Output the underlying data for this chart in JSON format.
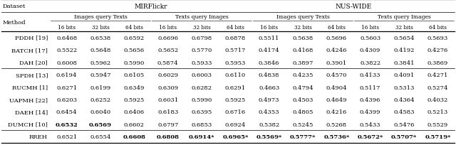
{
  "datasets": [
    "MIRFlickr",
    "NUS-WIDE"
  ],
  "sub_headers": [
    "Images query Texts",
    "Texts query Images",
    "Images query Texts",
    "Texts query Images"
  ],
  "bit_headers": [
    "16 bits",
    "32 bits",
    "64 bits",
    "16 bits",
    "32 bits",
    "64 bits",
    "16 bits",
    "32 bits",
    "64 bits",
    "16 bits",
    "32 bits",
    "64 bits"
  ],
  "methods": [
    "PDDH [19]",
    "BATCH [17]",
    "DAH [20]",
    "SPDH [13]",
    "RUCMH [1]",
    "UAPMH [22]",
    "DAEH [14]",
    "DUMCH [10]",
    "RREH"
  ],
  "data": [
    [
      0.6468,
      0.6538,
      0.6592,
      0.6696,
      0.6798,
      0.6878,
      0.5511,
      0.5638,
      0.5696,
      0.5603,
      0.5654,
      0.5693
    ],
    [
      0.5522,
      0.5648,
      0.5656,
      0.5652,
      0.577,
      0.5717,
      0.4174,
      0.4168,
      0.4246,
      0.4309,
      0.4192,
      0.4276
    ],
    [
      0.6008,
      0.5962,
      0.599,
      0.5874,
      0.5933,
      0.5953,
      0.3846,
      0.3897,
      0.3901,
      0.3822,
      0.3841,
      0.3869
    ],
    [
      0.6194,
      0.5947,
      0.6105,
      0.6029,
      0.6003,
      0.611,
      0.4838,
      0.4235,
      0.457,
      0.4133,
      0.4091,
      0.4271
    ],
    [
      0.6271,
      0.6199,
      0.6349,
      0.6309,
      0.6282,
      0.6291,
      0.4663,
      0.4794,
      0.4904,
      0.5117,
      0.5313,
      0.5274
    ],
    [
      0.6203,
      0.6252,
      0.5925,
      0.6031,
      0.599,
      0.5925,
      0.4973,
      0.4503,
      0.4649,
      0.4396,
      0.4364,
      0.4032
    ],
    [
      0.6454,
      0.604,
      0.6406,
      0.6183,
      0.6395,
      0.6716,
      0.4353,
      0.4805,
      0.4216,
      0.4399,
      0.4583,
      0.5213
    ],
    [
      0.6532,
      0.6569,
      0.6602,
      0.6797,
      0.6853,
      0.6924,
      0.5382,
      0.5245,
      0.5268,
      0.5433,
      0.5476,
      0.5529
    ],
    [
      0.6521,
      0.6554,
      0.6608,
      0.6808,
      0.6914,
      0.6965,
      0.5569,
      0.5777,
      0.5736,
      0.5672,
      0.5707,
      0.5719
    ]
  ],
  "bold_cells": [
    [
      false,
      false,
      false,
      false,
      false,
      false,
      false,
      false,
      false,
      false,
      false,
      false
    ],
    [
      false,
      false,
      false,
      false,
      false,
      false,
      false,
      false,
      false,
      false,
      false,
      false
    ],
    [
      false,
      false,
      false,
      false,
      false,
      false,
      false,
      false,
      false,
      false,
      false,
      false
    ],
    [
      false,
      false,
      false,
      false,
      false,
      false,
      false,
      false,
      false,
      false,
      false,
      false
    ],
    [
      false,
      false,
      false,
      false,
      false,
      false,
      false,
      false,
      false,
      false,
      false,
      false
    ],
    [
      false,
      false,
      false,
      false,
      false,
      false,
      false,
      false,
      false,
      false,
      false,
      false
    ],
    [
      false,
      false,
      false,
      false,
      false,
      false,
      false,
      false,
      false,
      false,
      false,
      false
    ],
    [
      true,
      true,
      false,
      false,
      false,
      false,
      false,
      false,
      false,
      false,
      false,
      false
    ],
    [
      false,
      false,
      true,
      true,
      true,
      true,
      true,
      true,
      true,
      true,
      true,
      true
    ]
  ],
  "star_cells": [
    [
      false,
      false,
      false,
      false,
      false,
      false,
      false,
      false,
      false,
      false,
      false,
      false
    ],
    [
      false,
      false,
      false,
      false,
      false,
      false,
      false,
      false,
      false,
      false,
      false,
      false
    ],
    [
      false,
      false,
      false,
      false,
      false,
      false,
      false,
      false,
      false,
      false,
      false,
      false
    ],
    [
      false,
      false,
      false,
      false,
      false,
      false,
      false,
      false,
      false,
      false,
      false,
      false
    ],
    [
      false,
      false,
      false,
      false,
      false,
      false,
      false,
      false,
      false,
      false,
      false,
      false
    ],
    [
      false,
      false,
      false,
      false,
      false,
      false,
      false,
      false,
      false,
      false,
      false,
      false
    ],
    [
      false,
      false,
      false,
      false,
      false,
      false,
      false,
      false,
      false,
      false,
      false,
      false
    ],
    [
      false,
      false,
      false,
      false,
      false,
      false,
      false,
      false,
      false,
      false,
      false,
      false
    ],
    [
      false,
      false,
      false,
      false,
      true,
      true,
      true,
      true,
      true,
      true,
      true,
      true
    ]
  ],
  "separator_after_rows": [
    2,
    7
  ],
  "bg_color": "#ffffff",
  "text_color": "#000000",
  "fs_main": 6.0,
  "fs_small": 5.5
}
